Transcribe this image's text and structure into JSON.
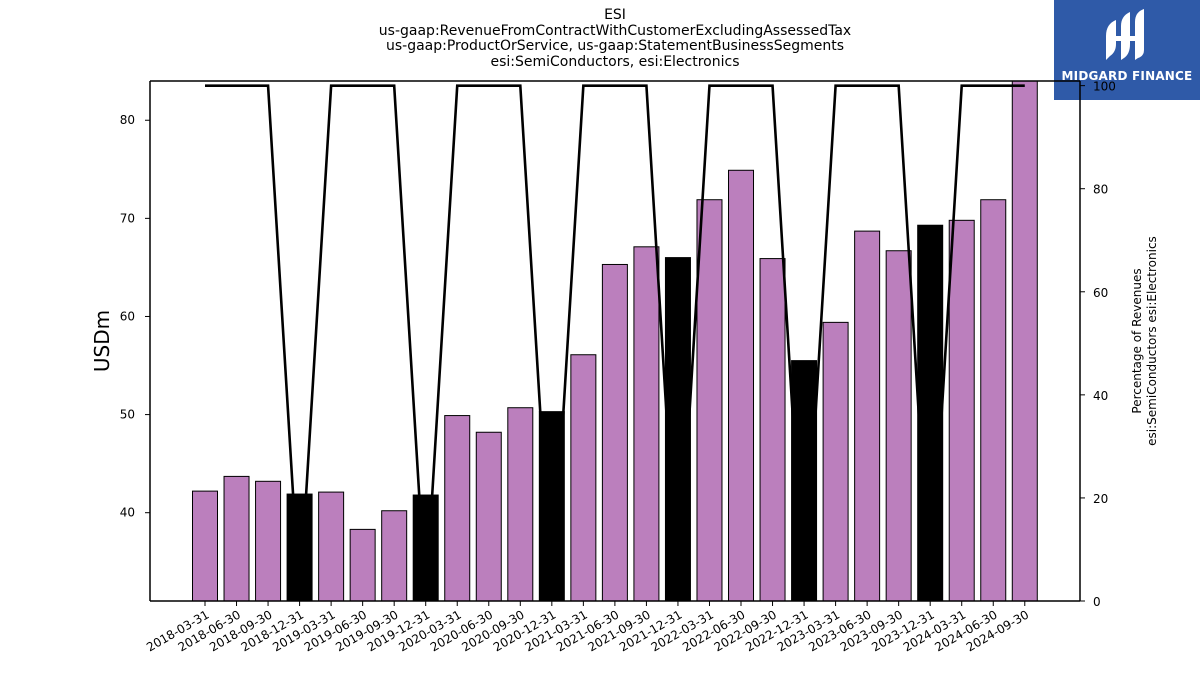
{
  "title_lines": [
    "ESI",
    "us-gaap:RevenueFromContractWithCustomerExcludingAssessedTax",
    "us-gaap:ProductOrService, us-gaap:StatementBusinessSegments",
    "esi:SemiConductors, esi:Electronics"
  ],
  "logo": {
    "text": "MIDGARD FINANCE",
    "color": "#2f5aa8",
    "icon": "midgard-logo-icon"
  },
  "chart_data": {
    "type": "bar",
    "title": "ESI",
    "categories": [
      "2018-03-31",
      "2018-06-30",
      "2018-09-30",
      "2018-12-31",
      "2019-03-31",
      "2019-06-30",
      "2019-09-30",
      "2019-12-31",
      "2020-03-31",
      "2020-06-30",
      "2020-09-30",
      "2020-12-31",
      "2021-03-31",
      "2021-06-30",
      "2021-09-30",
      "2021-12-31",
      "2022-03-31",
      "2022-06-30",
      "2022-09-30",
      "2022-12-31",
      "2023-03-31",
      "2023-06-30",
      "2023-09-30",
      "2023-12-31",
      "2024-03-31",
      "2024-06-30",
      "2024-09-30"
    ],
    "values": [
      42.2,
      43.7,
      43.2,
      41.9,
      42.1,
      38.3,
      40.2,
      41.8,
      49.9,
      48.2,
      50.7,
      50.3,
      56.1,
      65.3,
      67.1,
      66.0,
      71.9,
      74.9,
      65.9,
      55.5,
      59.4,
      68.7,
      66.7,
      69.3,
      69.8,
      71.9,
      84.0
    ],
    "bar_colors": [
      "#bb7fbd",
      "#bb7fbd",
      "#bb7fbd",
      "#000000",
      "#bb7fbd",
      "#bb7fbd",
      "#bb7fbd",
      "#000000",
      "#bb7fbd",
      "#bb7fbd",
      "#bb7fbd",
      "#000000",
      "#bb7fbd",
      "#bb7fbd",
      "#bb7fbd",
      "#000000",
      "#bb7fbd",
      "#bb7fbd",
      "#bb7fbd",
      "#000000",
      "#bb7fbd",
      "#bb7fbd",
      "#bb7fbd",
      "#000000",
      "#bb7fbd",
      "#bb7fbd",
      "#bb7fbd"
    ],
    "percentage_line": [
      100,
      100,
      100,
      0,
      100,
      100,
      100,
      0,
      100,
      100,
      100,
      0,
      100,
      100,
      100,
      0,
      100,
      100,
      100,
      0,
      100,
      100,
      100,
      0,
      100,
      100,
      100
    ],
    "ylabel": "USDm",
    "y2label_lines": [
      "Percentage of Revenues",
      "esi:SemiConductors esi:Electronics"
    ],
    "ylim": [
      31,
      84
    ],
    "y2lim": [
      0,
      100.9
    ],
    "yticks": [
      40,
      50,
      60,
      70,
      80
    ],
    "y2ticks": [
      0,
      20,
      40,
      60,
      80,
      100
    ],
    "grid": false,
    "legend": "none",
    "colors": {
      "bar": "#bb7fbd",
      "highlight_bar": "#000000",
      "line": "#000000"
    }
  }
}
